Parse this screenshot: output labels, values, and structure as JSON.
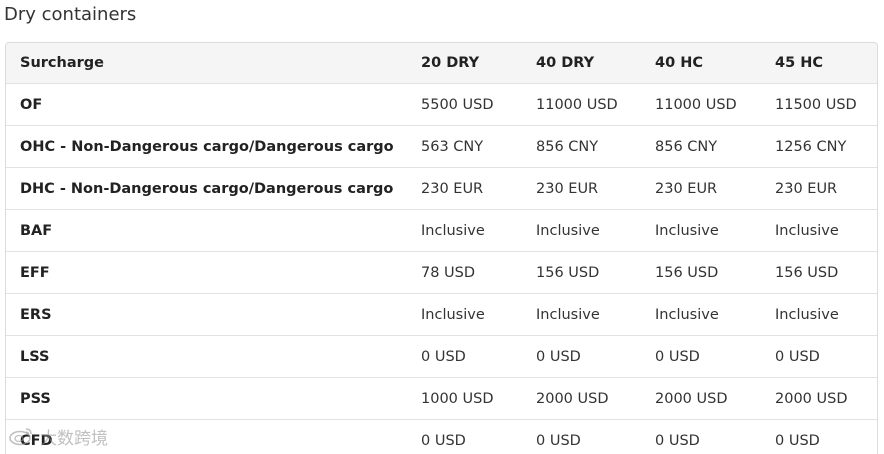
{
  "page_title": "Dry containers",
  "table": {
    "headers": [
      "Surcharge",
      "20 DRY",
      "40 DRY",
      "40 HC",
      "45 HC"
    ],
    "rows": [
      {
        "name": "OF",
        "values": [
          "5500 USD",
          "11000 USD",
          "11000 USD",
          "11500 USD"
        ]
      },
      {
        "name": "OHC - Non-Dangerous cargo/Dangerous cargo",
        "values": [
          "563 CNY",
          "856 CNY",
          "856 CNY",
          "1256 CNY"
        ]
      },
      {
        "name": "DHC - Non-Dangerous cargo/Dangerous cargo",
        "values": [
          "230 EUR",
          "230 EUR",
          "230 EUR",
          "230 EUR"
        ]
      },
      {
        "name": "BAF",
        "values": [
          "Inclusive",
          "Inclusive",
          "Inclusive",
          "Inclusive"
        ]
      },
      {
        "name": "EFF",
        "values": [
          "78 USD",
          "156 USD",
          "156 USD",
          "156 USD"
        ]
      },
      {
        "name": "ERS",
        "values": [
          "Inclusive",
          "Inclusive",
          "Inclusive",
          "Inclusive"
        ]
      },
      {
        "name": "LSS",
        "values": [
          "0 USD",
          "0 USD",
          "0 USD",
          "0 USD"
        ]
      },
      {
        "name": "PSS",
        "values": [
          "1000 USD",
          "2000 USD",
          "2000 USD",
          "2000 USD"
        ]
      },
      {
        "name": "CFD",
        "values": [
          "0 USD",
          "0 USD",
          "0 USD",
          "0 USD"
        ]
      }
    ]
  },
  "watermark": {
    "text": "大数跨境",
    "icon": "weibo-logo-icon"
  }
}
